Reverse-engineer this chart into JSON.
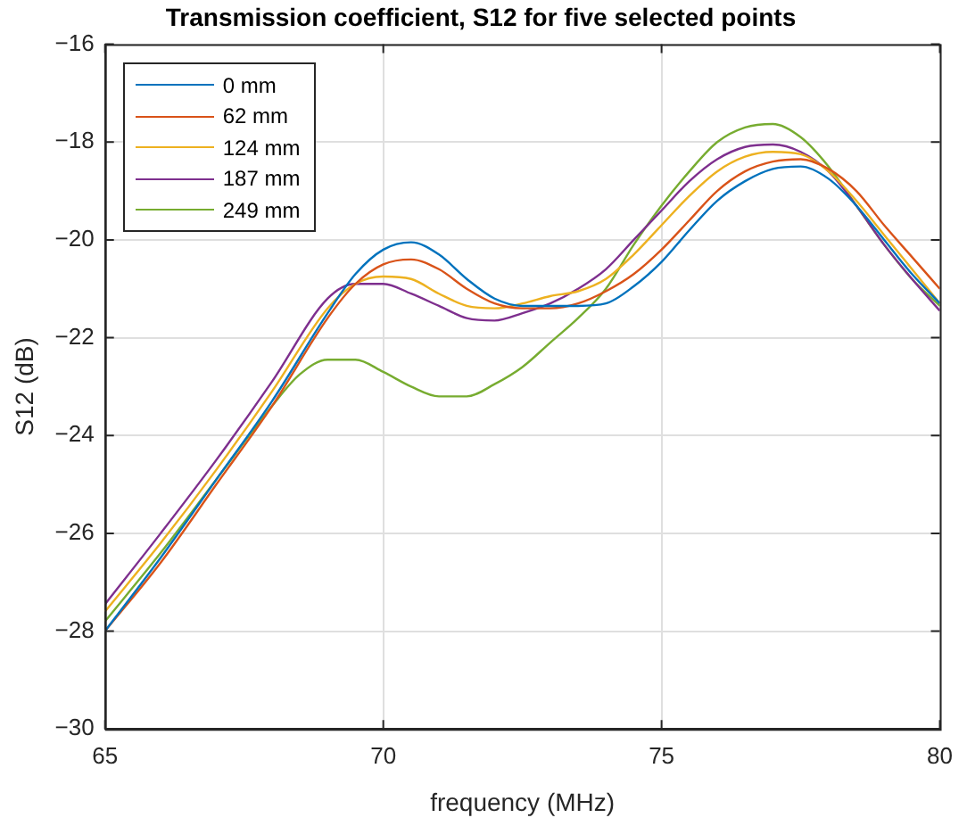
{
  "chart_data": {
    "type": "line",
    "title": "Transmission coefficient, S12 for five selected points",
    "xlabel": "frequency (MHz)",
    "ylabel": "S12 (dB)",
    "x": [
      65,
      66,
      67,
      68,
      69,
      69.5,
      70,
      70.5,
      71,
      71.5,
      72,
      72.5,
      73,
      73.5,
      74,
      74.5,
      75,
      75.5,
      76,
      76.5,
      77,
      77.5,
      78,
      78.5,
      79,
      79.5,
      80
    ],
    "series": [
      {
        "name": "0 mm",
        "color": "#0072bd",
        "values": [
          -28.0,
          -26.5,
          -24.9,
          -23.3,
          -21.5,
          -20.7,
          -20.2,
          -20.05,
          -20.3,
          -20.8,
          -21.2,
          -21.35,
          -21.35,
          -21.35,
          -21.3,
          -20.95,
          -20.45,
          -19.8,
          -19.2,
          -18.8,
          -18.55,
          -18.5,
          -18.75,
          -19.3,
          -20.0,
          -20.7,
          -21.3
        ]
      },
      {
        "name": "62 mm",
        "color": "#d95319",
        "values": [
          -28.0,
          -26.6,
          -25.0,
          -23.4,
          -21.6,
          -20.9,
          -20.5,
          -20.4,
          -20.6,
          -21.0,
          -21.3,
          -21.4,
          -21.4,
          -21.3,
          -21.05,
          -20.7,
          -20.2,
          -19.6,
          -19.0,
          -18.6,
          -18.4,
          -18.35,
          -18.55,
          -19.0,
          -19.7,
          -20.35,
          -21.0
        ]
      },
      {
        "name": "124 mm",
        "color": "#edb120",
        "values": [
          -27.6,
          -26.2,
          -24.7,
          -23.1,
          -21.4,
          -20.9,
          -20.75,
          -20.8,
          -21.1,
          -21.35,
          -21.4,
          -21.3,
          -21.15,
          -21.05,
          -20.8,
          -20.3,
          -19.7,
          -19.1,
          -18.6,
          -18.3,
          -18.2,
          -18.25,
          -18.6,
          -19.2,
          -19.9,
          -20.6,
          -21.3
        ]
      },
      {
        "name": "187 mm",
        "color": "#7e2f8e",
        "values": [
          -27.45,
          -26.0,
          -24.5,
          -22.9,
          -21.2,
          -20.9,
          -20.9,
          -21.1,
          -21.35,
          -21.6,
          -21.65,
          -21.5,
          -21.3,
          -21.0,
          -20.6,
          -20.0,
          -19.4,
          -18.8,
          -18.35,
          -18.1,
          -18.05,
          -18.2,
          -18.6,
          -19.3,
          -20.1,
          -20.8,
          -21.45
        ]
      },
      {
        "name": "249 mm",
        "color": "#77ac30",
        "x": [
          65,
          66,
          67,
          68,
          68.5,
          69,
          69.5,
          70,
          70.5,
          71,
          71.5,
          72,
          72.5,
          73,
          73.5,
          74,
          74.5,
          75,
          75.5,
          76,
          76.5,
          77,
          77.5,
          78,
          78.5,
          79,
          79.5,
          80
        ],
        "values": [
          -27.8,
          -26.4,
          -24.9,
          -23.4,
          -22.75,
          -22.45,
          -22.45,
          -22.7,
          -23.0,
          -23.2,
          -23.2,
          -22.95,
          -22.6,
          -22.1,
          -21.6,
          -21.0,
          -20.1,
          -19.3,
          -18.6,
          -18.0,
          -17.7,
          -17.63,
          -17.9,
          -18.5,
          -19.3,
          -20.1,
          -20.8,
          -21.35
        ]
      }
    ],
    "xlim": [
      65,
      80
    ],
    "xticks": [
      65,
      70,
      75,
      80
    ],
    "ylim": [
      -30,
      -16
    ],
    "yticks": [
      -30,
      -28,
      -26,
      -24,
      -22,
      -20,
      -18,
      -16
    ],
    "grid": true,
    "legend": "top left",
    "marker": "none",
    "line_style": "solid"
  }
}
